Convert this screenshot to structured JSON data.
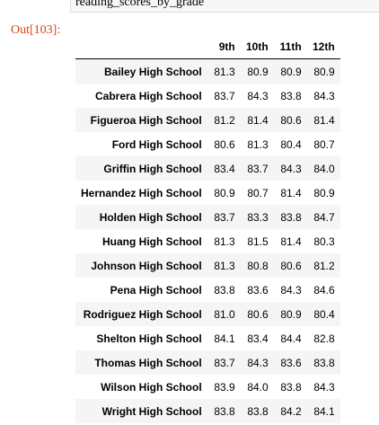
{
  "input_cell": {
    "code": "reading_scores_by_grade"
  },
  "output": {
    "prompt": "Out[103]:"
  },
  "table": {
    "columns": [
      "9th",
      "10th",
      "11th",
      "12th"
    ],
    "rows": [
      {
        "school": "Bailey High School",
        "values": [
          "81.3",
          "80.9",
          "80.9",
          "80.9"
        ]
      },
      {
        "school": "Cabrera High School",
        "values": [
          "83.7",
          "84.3",
          "83.8",
          "84.3"
        ]
      },
      {
        "school": "Figueroa High School",
        "values": [
          "81.2",
          "81.4",
          "80.6",
          "81.4"
        ]
      },
      {
        "school": "Ford High School",
        "values": [
          "80.6",
          "81.3",
          "80.4",
          "80.7"
        ]
      },
      {
        "school": "Griffin High School",
        "values": [
          "83.4",
          "83.7",
          "84.3",
          "84.0"
        ]
      },
      {
        "school": "Hernandez High School",
        "values": [
          "80.9",
          "80.7",
          "81.4",
          "80.9"
        ]
      },
      {
        "school": "Holden High School",
        "values": [
          "83.7",
          "83.3",
          "83.8",
          "84.7"
        ]
      },
      {
        "school": "Huang High School",
        "values": [
          "81.3",
          "81.5",
          "81.4",
          "80.3"
        ]
      },
      {
        "school": "Johnson High School",
        "values": [
          "81.3",
          "80.8",
          "80.6",
          "81.2"
        ]
      },
      {
        "school": "Pena High School",
        "values": [
          "83.8",
          "83.6",
          "84.3",
          "84.6"
        ]
      },
      {
        "school": "Rodriguez High School",
        "values": [
          "81.0",
          "80.6",
          "80.9",
          "80.4"
        ]
      },
      {
        "school": "Shelton High School",
        "values": [
          "84.1",
          "83.4",
          "84.4",
          "82.8"
        ]
      },
      {
        "school": "Thomas High School",
        "values": [
          "83.7",
          "84.3",
          "83.6",
          "83.8"
        ]
      },
      {
        "school": "Wilson High School",
        "values": [
          "83.9",
          "84.0",
          "83.8",
          "84.3"
        ]
      },
      {
        "school": "Wright High School",
        "values": [
          "83.8",
          "83.8",
          "84.2",
          "84.1"
        ]
      }
    ]
  }
}
